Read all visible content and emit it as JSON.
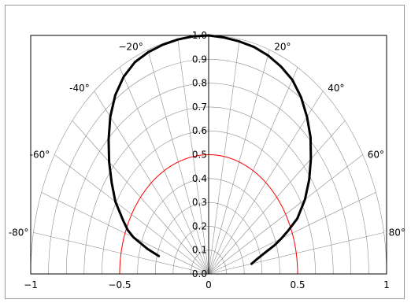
{
  "chart_data": {
    "type": "polar",
    "title": "",
    "radial_ticks": [
      "0.0",
      "0.1",
      "0.2",
      "0.3",
      "0.4",
      "0.5",
      "0.6",
      "0.7",
      "0.8",
      "0.9",
      "1.0"
    ],
    "radial_range": [
      0,
      1
    ],
    "angle_range_deg": [
      -90,
      90
    ],
    "angle_labels": [
      {
        "angle": -80,
        "text": "-80°"
      },
      {
        "angle": -60,
        "text": "-60°"
      },
      {
        "angle": -40,
        "text": "-40°"
      },
      {
        "angle": -20,
        "text": "−20°"
      },
      {
        "angle": 20,
        "text": "20°"
      },
      {
        "angle": 40,
        "text": "40°"
      },
      {
        "angle": 60,
        "text": "60°"
      },
      {
        "angle": 80,
        "text": "80°"
      }
    ],
    "x_ticks": [
      {
        "value": -1,
        "text": "−1"
      },
      {
        "value": -0.5,
        "text": "−0.5"
      },
      {
        "value": 0,
        "text": "0"
      },
      {
        "value": 0.5,
        "text": "0.5"
      },
      {
        "value": 1,
        "text": "1"
      }
    ],
    "grid": true,
    "reference_circle": {
      "radius": 0.5,
      "color": "#ff0000"
    },
    "series": [
      {
        "color": "#000000",
        "points": [
          {
            "angle": -75,
            "r": 0.29
          },
          {
            "angle": -73,
            "r": 0.36
          },
          {
            "angle": -70,
            "r": 0.45
          },
          {
            "angle": -68,
            "r": 0.49
          },
          {
            "angle": -65,
            "r": 0.53
          },
          {
            "angle": -60,
            "r": 0.605
          },
          {
            "angle": -55,
            "r": 0.665
          },
          {
            "angle": -50,
            "r": 0.73
          },
          {
            "angle": -45,
            "r": 0.795
          },
          {
            "angle": -40,
            "r": 0.86
          },
          {
            "angle": -35,
            "r": 0.915
          },
          {
            "angle": -30,
            "r": 0.955
          },
          {
            "angle": -25,
            "r": 0.98
          },
          {
            "angle": -20,
            "r": 0.99
          },
          {
            "angle": -15,
            "r": 0.995
          },
          {
            "angle": -10,
            "r": 0.998
          },
          {
            "angle": -5,
            "r": 1.0
          },
          {
            "angle": 0,
            "r": 1.0
          },
          {
            "angle": 5,
            "r": 0.995
          },
          {
            "angle": 10,
            "r": 0.99
          },
          {
            "angle": 15,
            "r": 0.985
          },
          {
            "angle": 20,
            "r": 0.975
          },
          {
            "angle": 25,
            "r": 0.96
          },
          {
            "angle": 30,
            "r": 0.94
          },
          {
            "angle": 35,
            "r": 0.905
          },
          {
            "angle": 40,
            "r": 0.86
          },
          {
            "angle": 45,
            "r": 0.81
          },
          {
            "angle": 50,
            "r": 0.75
          },
          {
            "angle": 55,
            "r": 0.69
          },
          {
            "angle": 60,
            "r": 0.625
          },
          {
            "angle": 65,
            "r": 0.55
          },
          {
            "angle": 68,
            "r": 0.48
          },
          {
            "angle": 70,
            "r": 0.435
          },
          {
            "angle": 72,
            "r": 0.39
          },
          {
            "angle": 74,
            "r": 0.335
          },
          {
            "angle": 77,
            "r": 0.28
          },
          {
            "angle": 80,
            "r": 0.245
          }
        ]
      }
    ]
  }
}
